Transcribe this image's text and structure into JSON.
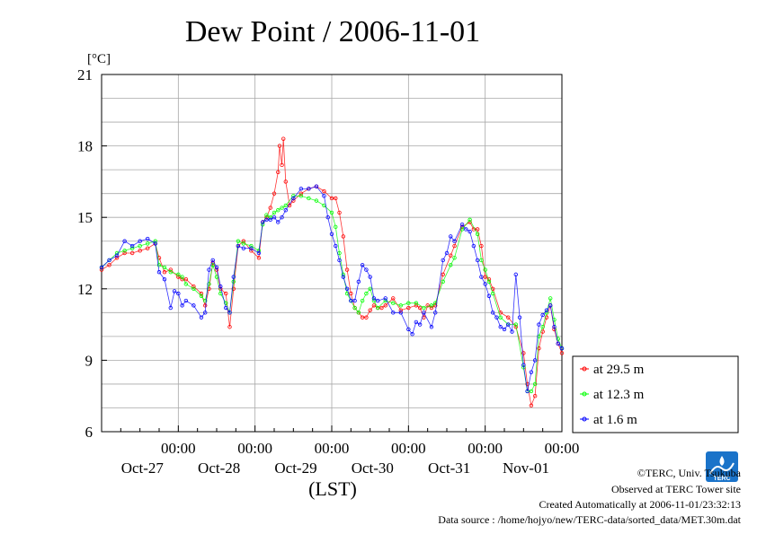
{
  "chart_data": {
    "type": "line",
    "title": "Dew Point / 2006-11-01",
    "ylabel": "[°C]",
    "xlabel": "(LST)",
    "ylim": [
      6,
      21
    ],
    "yticks": [
      6,
      9,
      12,
      15,
      18,
      21
    ],
    "xlim": [
      0,
      6
    ],
    "xlim_units": "days from 2006-10-26 12:00 LST",
    "xticks": [
      {
        "x": 1,
        "time": "00:00",
        "date": "Oct-27"
      },
      {
        "x": 2,
        "time": "00:00",
        "date": "Oct-28"
      },
      {
        "x": 3,
        "time": "00:00",
        "date": "Oct-29"
      },
      {
        "x": 4,
        "time": "00:00",
        "date": "Oct-30"
      },
      {
        "x": 5,
        "time": "00:00",
        "date": "Oct-31"
      },
      {
        "x": 6,
        "time": "00:00",
        "date": "Nov-01"
      }
    ],
    "grid": true,
    "legend_position": "right",
    "series": [
      {
        "name": "at 29.5 m",
        "color": "#ff0000",
        "marker": "circle",
        "points": [
          [
            0.0,
            12.8
          ],
          [
            0.1,
            13.0
          ],
          [
            0.2,
            13.3
          ],
          [
            0.3,
            13.5
          ],
          [
            0.4,
            13.5
          ],
          [
            0.5,
            13.6
          ],
          [
            0.6,
            13.7
          ],
          [
            0.7,
            13.9
          ],
          [
            0.75,
            13.3
          ],
          [
            0.82,
            12.7
          ],
          [
            0.9,
            12.8
          ],
          [
            1.0,
            12.5
          ],
          [
            1.05,
            12.4
          ],
          [
            1.1,
            12.4
          ],
          [
            1.2,
            12.1
          ],
          [
            1.3,
            11.8
          ],
          [
            1.35,
            11.3
          ],
          [
            1.4,
            12.0
          ],
          [
            1.45,
            13.1
          ],
          [
            1.5,
            12.8
          ],
          [
            1.55,
            12.0
          ],
          [
            1.62,
            11.8
          ],
          [
            1.67,
            10.4
          ],
          [
            1.72,
            12.0
          ],
          [
            1.78,
            13.8
          ],
          [
            1.85,
            14.0
          ],
          [
            1.95,
            13.6
          ],
          [
            2.05,
            13.3
          ],
          [
            2.1,
            14.8
          ],
          [
            2.15,
            15.0
          ],
          [
            2.2,
            15.4
          ],
          [
            2.25,
            16.0
          ],
          [
            2.3,
            16.9
          ],
          [
            2.32,
            18.0
          ],
          [
            2.35,
            17.2
          ],
          [
            2.37,
            18.3
          ],
          [
            2.4,
            16.5
          ],
          [
            2.45,
            15.5
          ],
          [
            2.5,
            15.7
          ],
          [
            2.6,
            16.0
          ],
          [
            2.7,
            16.2
          ],
          [
            2.8,
            16.3
          ],
          [
            2.9,
            16.1
          ],
          [
            3.0,
            15.8
          ],
          [
            3.05,
            15.8
          ],
          [
            3.1,
            15.2
          ],
          [
            3.15,
            14.2
          ],
          [
            3.2,
            12.8
          ],
          [
            3.25,
            11.8
          ],
          [
            3.3,
            11.2
          ],
          [
            3.35,
            11.0
          ],
          [
            3.4,
            10.8
          ],
          [
            3.45,
            10.8
          ],
          [
            3.5,
            11.1
          ],
          [
            3.55,
            11.3
          ],
          [
            3.6,
            11.2
          ],
          [
            3.65,
            11.2
          ],
          [
            3.7,
            11.3
          ],
          [
            3.8,
            11.6
          ],
          [
            3.9,
            11.1
          ],
          [
            4.0,
            11.2
          ],
          [
            4.1,
            11.3
          ],
          [
            4.15,
            11.2
          ],
          [
            4.2,
            10.8
          ],
          [
            4.25,
            11.3
          ],
          [
            4.3,
            11.2
          ],
          [
            4.35,
            11.3
          ],
          [
            4.45,
            12.6
          ],
          [
            4.55,
            13.4
          ],
          [
            4.6,
            13.8
          ],
          [
            4.7,
            14.6
          ],
          [
            4.8,
            14.8
          ],
          [
            4.85,
            14.5
          ],
          [
            4.9,
            14.5
          ],
          [
            4.95,
            13.8
          ],
          [
            5.0,
            12.5
          ],
          [
            5.05,
            12.4
          ],
          [
            5.1,
            12.0
          ],
          [
            5.2,
            11.0
          ],
          [
            5.3,
            10.8
          ],
          [
            5.4,
            10.4
          ],
          [
            5.5,
            9.3
          ],
          [
            5.55,
            8.0
          ],
          [
            5.6,
            7.1
          ],
          [
            5.65,
            7.5
          ],
          [
            5.7,
            9.5
          ],
          [
            5.75,
            10.2
          ],
          [
            5.8,
            10.8
          ],
          [
            5.85,
            11.3
          ],
          [
            5.9,
            10.3
          ],
          [
            5.95,
            9.7
          ],
          [
            6.0,
            9.3
          ]
        ]
      },
      {
        "name": "at 12.3 m",
        "color": "#00ff00",
        "marker": "circle",
        "points": [
          [
            0.0,
            12.9
          ],
          [
            0.1,
            13.2
          ],
          [
            0.2,
            13.5
          ],
          [
            0.3,
            13.6
          ],
          [
            0.4,
            13.7
          ],
          [
            0.5,
            13.8
          ],
          [
            0.6,
            13.9
          ],
          [
            0.7,
            14.0
          ],
          [
            0.75,
            13.0
          ],
          [
            0.82,
            12.9
          ],
          [
            0.9,
            12.7
          ],
          [
            1.0,
            12.6
          ],
          [
            1.05,
            12.5
          ],
          [
            1.1,
            12.2
          ],
          [
            1.2,
            12.0
          ],
          [
            1.3,
            11.7
          ],
          [
            1.35,
            11.5
          ],
          [
            1.4,
            12.2
          ],
          [
            1.45,
            13.0
          ],
          [
            1.5,
            12.5
          ],
          [
            1.55,
            11.8
          ],
          [
            1.62,
            11.4
          ],
          [
            1.67,
            11.0
          ],
          [
            1.72,
            12.3
          ],
          [
            1.78,
            14.0
          ],
          [
            1.85,
            13.9
          ],
          [
            1.95,
            13.8
          ],
          [
            2.05,
            13.6
          ],
          [
            2.1,
            14.7
          ],
          [
            2.15,
            15.1
          ],
          [
            2.2,
            15.0
          ],
          [
            2.25,
            15.2
          ],
          [
            2.3,
            15.3
          ],
          [
            2.35,
            15.4
          ],
          [
            2.4,
            15.5
          ],
          [
            2.5,
            15.9
          ],
          [
            2.6,
            15.9
          ],
          [
            2.7,
            15.8
          ],
          [
            2.8,
            15.7
          ],
          [
            2.9,
            15.5
          ],
          [
            3.0,
            15.2
          ],
          [
            3.05,
            14.6
          ],
          [
            3.1,
            13.5
          ],
          [
            3.15,
            12.6
          ],
          [
            3.2,
            11.8
          ],
          [
            3.25,
            11.5
          ],
          [
            3.3,
            11.2
          ],
          [
            3.35,
            11.0
          ],
          [
            3.4,
            11.5
          ],
          [
            3.45,
            11.8
          ],
          [
            3.5,
            12.0
          ],
          [
            3.55,
            11.5
          ],
          [
            3.6,
            11.2
          ],
          [
            3.7,
            11.5
          ],
          [
            3.8,
            11.4
          ],
          [
            3.9,
            11.3
          ],
          [
            4.0,
            11.4
          ],
          [
            4.1,
            11.4
          ],
          [
            4.2,
            11.2
          ],
          [
            4.3,
            11.3
          ],
          [
            4.35,
            11.4
          ],
          [
            4.45,
            12.3
          ],
          [
            4.55,
            13.0
          ],
          [
            4.6,
            13.3
          ],
          [
            4.7,
            14.5
          ],
          [
            4.8,
            14.9
          ],
          [
            4.9,
            14.3
          ],
          [
            4.95,
            13.2
          ],
          [
            5.0,
            12.8
          ],
          [
            5.05,
            12.3
          ],
          [
            5.1,
            11.8
          ],
          [
            5.2,
            10.8
          ],
          [
            5.3,
            10.5
          ],
          [
            5.4,
            10.5
          ],
          [
            5.5,
            8.7
          ],
          [
            5.55,
            7.7
          ],
          [
            5.6,
            7.7
          ],
          [
            5.65,
            8.0
          ],
          [
            5.7,
            10.0
          ],
          [
            5.75,
            10.4
          ],
          [
            5.8,
            11.0
          ],
          [
            5.85,
            11.6
          ],
          [
            5.9,
            10.7
          ],
          [
            5.95,
            9.9
          ],
          [
            6.0,
            9.5
          ]
        ]
      },
      {
        "name": "at 1.6 m",
        "color": "#0000ff",
        "marker": "circle",
        "points": [
          [
            0.0,
            12.9
          ],
          [
            0.1,
            13.2
          ],
          [
            0.2,
            13.4
          ],
          [
            0.3,
            14.0
          ],
          [
            0.4,
            13.8
          ],
          [
            0.5,
            14.0
          ],
          [
            0.6,
            14.1
          ],
          [
            0.7,
            13.9
          ],
          [
            0.75,
            12.7
          ],
          [
            0.82,
            12.4
          ],
          [
            0.9,
            11.2
          ],
          [
            0.95,
            11.9
          ],
          [
            1.0,
            11.8
          ],
          [
            1.05,
            11.3
          ],
          [
            1.1,
            11.5
          ],
          [
            1.2,
            11.3
          ],
          [
            1.3,
            10.8
          ],
          [
            1.35,
            11.0
          ],
          [
            1.4,
            12.8
          ],
          [
            1.45,
            13.2
          ],
          [
            1.5,
            12.9
          ],
          [
            1.55,
            12.1
          ],
          [
            1.62,
            11.2
          ],
          [
            1.67,
            11.0
          ],
          [
            1.72,
            12.5
          ],
          [
            1.78,
            13.8
          ],
          [
            1.85,
            13.7
          ],
          [
            1.95,
            13.7
          ],
          [
            2.05,
            13.5
          ],
          [
            2.1,
            14.8
          ],
          [
            2.15,
            14.9
          ],
          [
            2.2,
            14.9
          ],
          [
            2.25,
            15.0
          ],
          [
            2.3,
            14.8
          ],
          [
            2.35,
            15.0
          ],
          [
            2.4,
            15.3
          ],
          [
            2.5,
            15.8
          ],
          [
            2.6,
            16.2
          ],
          [
            2.7,
            16.2
          ],
          [
            2.8,
            16.3
          ],
          [
            2.9,
            15.9
          ],
          [
            2.95,
            15.0
          ],
          [
            3.0,
            14.3
          ],
          [
            3.05,
            13.8
          ],
          [
            3.1,
            13.2
          ],
          [
            3.15,
            12.5
          ],
          [
            3.2,
            12.0
          ],
          [
            3.25,
            11.5
          ],
          [
            3.3,
            11.5
          ],
          [
            3.35,
            12.3
          ],
          [
            3.4,
            13.0
          ],
          [
            3.45,
            12.8
          ],
          [
            3.5,
            12.5
          ],
          [
            3.55,
            11.6
          ],
          [
            3.6,
            11.5
          ],
          [
            3.7,
            11.6
          ],
          [
            3.8,
            11.0
          ],
          [
            3.9,
            11.0
          ],
          [
            4.0,
            10.3
          ],
          [
            4.05,
            10.1
          ],
          [
            4.1,
            10.6
          ],
          [
            4.15,
            10.5
          ],
          [
            4.2,
            11.0
          ],
          [
            4.3,
            10.4
          ],
          [
            4.35,
            11.0
          ],
          [
            4.45,
            13.2
          ],
          [
            4.5,
            13.5
          ],
          [
            4.55,
            14.2
          ],
          [
            4.6,
            14.0
          ],
          [
            4.7,
            14.7
          ],
          [
            4.75,
            14.5
          ],
          [
            4.8,
            14.4
          ],
          [
            4.85,
            13.8
          ],
          [
            4.9,
            13.2
          ],
          [
            4.95,
            12.5
          ],
          [
            5.0,
            12.2
          ],
          [
            5.05,
            11.7
          ],
          [
            5.1,
            11.0
          ],
          [
            5.15,
            10.8
          ],
          [
            5.2,
            10.4
          ],
          [
            5.25,
            10.3
          ],
          [
            5.3,
            10.5
          ],
          [
            5.35,
            10.2
          ],
          [
            5.4,
            12.6
          ],
          [
            5.45,
            10.8
          ],
          [
            5.5,
            8.8
          ],
          [
            5.55,
            7.7
          ],
          [
            5.6,
            8.5
          ],
          [
            5.65,
            9.0
          ],
          [
            5.7,
            10.5
          ],
          [
            5.75,
            10.9
          ],
          [
            5.8,
            11.1
          ],
          [
            5.85,
            11.3
          ],
          [
            5.9,
            10.4
          ],
          [
            5.95,
            9.7
          ],
          [
            6.0,
            9.5
          ]
        ]
      }
    ]
  },
  "credits": {
    "copyright": "©TERC, Univ. Tsukuba",
    "observed": "Observed at TERC Tower site",
    "created": "Created Automatically at 2006-11-01/23:32:13",
    "source": "Data source : /home/hojyo/new/TERC-data/sorted_data/MET.30m.dat"
  },
  "logo": {
    "text": "TERC",
    "color": "#1a73c9"
  }
}
